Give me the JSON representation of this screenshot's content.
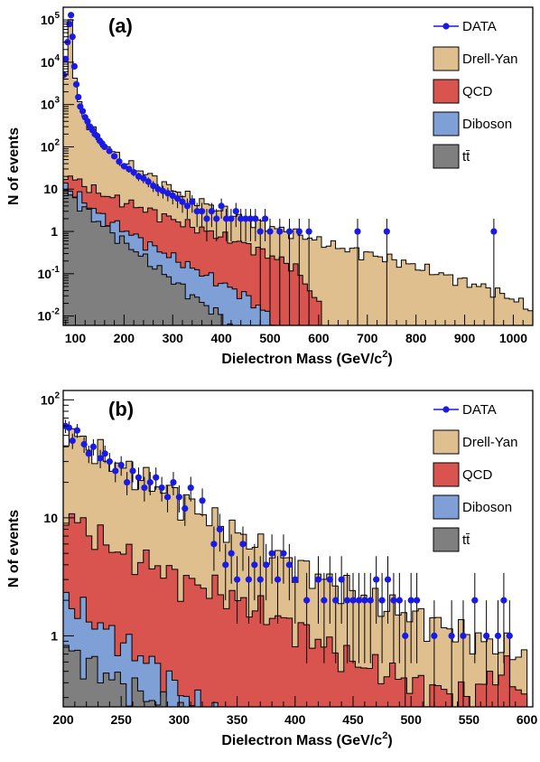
{
  "chart_data": [
    {
      "type": "histogram",
      "panel_label": "(a)",
      "xlabel_main": "Dielectron Mass (GeV/c",
      "xlabel_sup": "2",
      "xlabel_tail": ")",
      "ylabel": "N of events",
      "xlim": [
        75,
        1040
      ],
      "ylim": [
        0.006,
        200000
      ],
      "yscale": "log",
      "x_ticks": [
        100,
        200,
        300,
        400,
        500,
        600,
        700,
        800,
        900,
        1000
      ],
      "y_ticks": [
        {
          "value": 0.01,
          "base": "10",
          "exp": "-2"
        },
        {
          "value": 0.1,
          "base": "10",
          "exp": "-1"
        },
        {
          "value": 1,
          "base": "1",
          "exp": ""
        },
        {
          "value": 10,
          "base": "10",
          "exp": ""
        },
        {
          "value": 100,
          "base": "10",
          "exp": "2"
        },
        {
          "value": 1000,
          "base": "10",
          "exp": "3"
        },
        {
          "value": 10000,
          "base": "10",
          "exp": "4"
        },
        {
          "value": 100000,
          "base": "10",
          "exp": "5"
        }
      ],
      "legend": [
        "DATA",
        "Drell-Yan",
        "QCD",
        "Diboson",
        "tt̄"
      ],
      "legend_position": "top-right",
      "stack_components": {
        "ttbar": {
          "x": [
            75,
            150,
            250,
            350,
            400,
            430
          ],
          "y": [
            10,
            1.6,
            0.2,
            0.025,
            0.01,
            0.004
          ]
        },
        "diboson": {
          "x": [
            75,
            150,
            250,
            350,
            450,
            500,
            510
          ],
          "y": [
            14,
            2.5,
            0.5,
            0.12,
            0.03,
            0.01,
            0.004
          ]
        },
        "qcd": {
          "x": [
            75,
            150,
            250,
            350,
            450,
            550,
            600,
            610
          ],
          "y": [
            24,
            8,
            3.2,
            1.2,
            0.5,
            0.15,
            0.02,
            0.004
          ]
        },
        "drellyan": {
          "x": [
            75,
            85,
            88,
            90,
            91,
            92,
            94,
            97,
            100,
            110,
            130,
            150,
            200,
            250,
            300,
            350,
            400,
            450,
            500,
            550,
            600,
            650,
            700,
            750,
            800,
            850,
            900,
            950,
            1000,
            1040
          ],
          "y": [
            3000,
            20000,
            60000,
            110000,
            120000,
            100000,
            40000,
            9000,
            3000,
            900,
            300,
            140,
            45,
            22,
            10,
            5.5,
            3.2,
            2,
            1.3,
            0.9,
            0.6,
            0.4,
            0.3,
            0.22,
            0.15,
            0.1,
            0.065,
            0.045,
            0.025,
            0.015
          ]
        }
      },
      "data_points": {
        "x": [
          76,
          80,
          84,
          88,
          91,
          94,
          98,
          102,
          106,
          110,
          115,
          120,
          125,
          130,
          135,
          140,
          145,
          150,
          155,
          160,
          170,
          180,
          190,
          200,
          210,
          220,
          230,
          240,
          250,
          260,
          270,
          280,
          290,
          300,
          310,
          320,
          330,
          340,
          350,
          360,
          370,
          380,
          390,
          400,
          410,
          420,
          430,
          440,
          450,
          460,
          470,
          480,
          490,
          500,
          520,
          540,
          560,
          580,
          680,
          740,
          960
        ],
        "y": [
          5000,
          12000,
          30000,
          80000,
          130000,
          40000,
          8000,
          3000,
          1500,
          900,
          700,
          500,
          400,
          300,
          250,
          200,
          180,
          140,
          120,
          100,
          80,
          60,
          45,
          35,
          30,
          25,
          20,
          18,
          15,
          12,
          10,
          9,
          8,
          7,
          6,
          5,
          4,
          5,
          3,
          3,
          2,
          3,
          2,
          4,
          2,
          2,
          3,
          2,
          2,
          2,
          2,
          1,
          2,
          1,
          1,
          1,
          1,
          1,
          1,
          1,
          1
        ]
      }
    },
    {
      "type": "histogram",
      "panel_label": "(b)",
      "xlabel_main": "Dielectron Mass (GeV/c",
      "xlabel_sup": "2",
      "xlabel_tail": ")",
      "ylabel": "N of events",
      "xlim": [
        200,
        605
      ],
      "ylim": [
        0.25,
        120
      ],
      "yscale": "log",
      "x_ticks": [
        200,
        250,
        300,
        350,
        400,
        450,
        500,
        550,
        600
      ],
      "y_ticks": [
        {
          "value": 1,
          "base": "1",
          "exp": ""
        },
        {
          "value": 10,
          "base": "10",
          "exp": ""
        },
        {
          "value": 100,
          "base": "10",
          "exp": "2"
        }
      ],
      "legend": [
        "DATA",
        "Drell-Yan",
        "QCD",
        "Diboson",
        "tt̄"
      ],
      "legend_position": "top-right",
      "stack_components": {
        "ttbar": {
          "x": [
            200,
            220,
            250,
            280,
            300,
            310
          ],
          "y": [
            0.8,
            0.6,
            0.4,
            0.28,
            0.22,
            0.2
          ]
        },
        "diboson": {
          "x": [
            200,
            220,
            250,
            280,
            300,
            320,
            340
          ],
          "y": [
            2.2,
            1.5,
            0.9,
            0.55,
            0.35,
            0.25,
            0.2
          ]
        },
        "qcd": {
          "x": [
            200,
            220,
            250,
            280,
            300,
            330,
            350,
            380,
            400,
            430,
            450,
            480,
            500,
            550,
            580,
            600
          ],
          "y": [
            12,
            8,
            5,
            4,
            3,
            2.5,
            2,
            1.5,
            1.2,
            0.8,
            0.6,
            0.5,
            0.4,
            0.3,
            0.55,
            0.3
          ]
        },
        "drellyan": {
          "x": [
            200,
            210,
            220,
            230,
            240,
            250,
            260,
            270,
            280,
            290,
            300,
            310,
            320,
            330,
            340,
            350,
            360,
            370,
            380,
            390,
            400,
            420,
            440,
            460,
            480,
            500,
            520,
            540,
            560,
            580,
            600
          ],
          "y": [
            60,
            50,
            42,
            36,
            30,
            27,
            24,
            21,
            19,
            17,
            15,
            13,
            11,
            9.5,
            8.5,
            7.5,
            6.5,
            5.5,
            5,
            4.5,
            4,
            3.2,
            2.6,
            2.2,
            1.8,
            1.5,
            1.3,
            1.1,
            0.9,
            0.8,
            0.7
          ]
        }
      },
      "data_points": {
        "x": [
          202,
          205,
          208,
          212,
          218,
          222,
          226,
          232,
          236,
          240,
          245,
          250,
          255,
          260,
          265,
          270,
          275,
          280,
          285,
          290,
          295,
          300,
          305,
          310,
          320,
          330,
          335,
          340,
          345,
          350,
          355,
          360,
          365,
          370,
          375,
          380,
          385,
          390,
          395,
          400,
          410,
          420,
          425,
          430,
          435,
          440,
          445,
          450,
          455,
          460,
          465,
          470,
          475,
          480,
          485,
          490,
          495,
          500,
          505,
          520,
          535,
          545,
          555,
          565,
          575,
          580,
          585
        ],
        "y": [
          60,
          58,
          45,
          55,
          42,
          35,
          40,
          32,
          35,
          30,
          25,
          28,
          20,
          25,
          22,
          18,
          20,
          22,
          18,
          15,
          20,
          15,
          12,
          18,
          14,
          6,
          8,
          4,
          5,
          3,
          6,
          3,
          4,
          3,
          4,
          5,
          3,
          5,
          4,
          3,
          2,
          3,
          2,
          3,
          2,
          3,
          2,
          2,
          2,
          2,
          2,
          3,
          2,
          3,
          2,
          2,
          1,
          2,
          2,
          1,
          1,
          1,
          2,
          1,
          1,
          2,
          1
        ]
      }
    }
  ],
  "colors": {
    "data": "#1a1ae6",
    "drellyan": "#e0bf8f",
    "qcd": "#d9534f",
    "diboson": "#7f9fd7",
    "ttbar": "#7f7f7f"
  }
}
